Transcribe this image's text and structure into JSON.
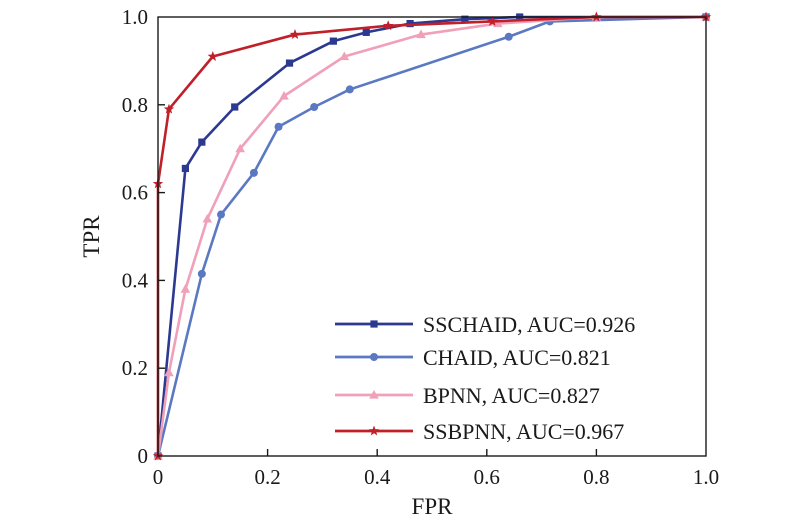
{
  "chart_data": {
    "type": "line",
    "title": "",
    "xlabel": "FPR",
    "ylabel": "TPR",
    "xlim": [
      0,
      1
    ],
    "ylim": [
      0,
      1
    ],
    "xticks": [
      "0",
      "0.2",
      "0.4",
      "0.6",
      "0.8",
      "1.0"
    ],
    "yticks": [
      "0",
      "0.2",
      "0.4",
      "0.6",
      "0.8",
      "1.0"
    ],
    "grid": false,
    "legend_position": "bottom-right",
    "series": [
      {
        "name": "SSCHAID, AUC=0.926",
        "color": "#2b3990",
        "marker": "square",
        "x": [
          0,
          0.05,
          0.08,
          0.14,
          0.24,
          0.32,
          0.38,
          0.46,
          0.56,
          0.66,
          1.0
        ],
        "y": [
          0,
          0.655,
          0.715,
          0.795,
          0.895,
          0.945,
          0.965,
          0.985,
          0.995,
          1.0,
          1.0
        ]
      },
      {
        "name": "CHAID, AUC=0.821",
        "color": "#5b79c2",
        "marker": "circle",
        "x": [
          0,
          0.08,
          0.115,
          0.175,
          0.22,
          0.285,
          0.35,
          0.64,
          0.715,
          1.0
        ],
        "y": [
          0,
          0.415,
          0.55,
          0.645,
          0.75,
          0.795,
          0.835,
          0.955,
          0.99,
          1.0
        ]
      },
      {
        "name": "BPNN, AUC=0.827",
        "color": "#f0a0b8",
        "marker": "triangle",
        "x": [
          0,
          0.02,
          0.05,
          0.09,
          0.15,
          0.23,
          0.34,
          0.48,
          0.62,
          0.8,
          1.0
        ],
        "y": [
          0,
          0.19,
          0.38,
          0.54,
          0.7,
          0.82,
          0.91,
          0.96,
          0.985,
          1.0,
          1.0
        ]
      },
      {
        "name": "SSBPNN, AUC=0.967",
        "color": "#c0202a",
        "marker": "star",
        "x": [
          0,
          0,
          0.02,
          0.1,
          0.25,
          0.42,
          0.61,
          0.8,
          1.0
        ],
        "y": [
          0,
          0.62,
          0.79,
          0.91,
          0.96,
          0.98,
          0.99,
          1.0,
          1.0
        ]
      }
    ]
  }
}
